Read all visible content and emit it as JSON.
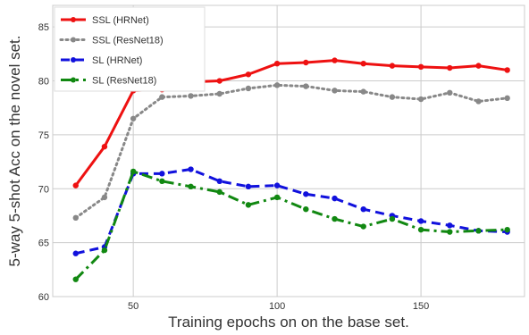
{
  "chart_data": {
    "type": "line",
    "xlabel": "Training epochs on on the base set.",
    "ylabel": "5-way 5-shot Acc on the novel set.",
    "xlim": [
      22,
      186
    ],
    "ylim": [
      60,
      87
    ],
    "xticks": [
      50,
      100,
      150
    ],
    "yticks": [
      60,
      65,
      70,
      75,
      80,
      85
    ],
    "grid": true,
    "legend_position": "top-left",
    "series": [
      {
        "name": "SSL (HRNet)",
        "color": "#ee1111",
        "dash": "solid",
        "x": [
          30,
          40,
          50,
          60,
          70,
          80,
          90,
          100,
          110,
          120,
          130,
          140,
          150,
          160,
          170,
          180
        ],
        "values": [
          70.3,
          73.9,
          79.1,
          79.2,
          79.9,
          80.0,
          80.6,
          81.6,
          81.7,
          81.9,
          81.6,
          81.4,
          81.3,
          81.2,
          81.4,
          81.0
        ]
      },
      {
        "name": "SSL (ResNet18)",
        "color": "#888888",
        "dash": "dotted",
        "x": [
          30,
          40,
          50,
          60,
          70,
          80,
          90,
          100,
          110,
          120,
          130,
          140,
          150,
          160,
          170,
          180
        ],
        "values": [
          67.3,
          69.2,
          76.5,
          78.5,
          78.6,
          78.8,
          79.3,
          79.6,
          79.5,
          79.1,
          79.0,
          78.5,
          78.3,
          78.9,
          78.1,
          78.4
        ]
      },
      {
        "name": "SL (HRNet)",
        "color": "#1111dd",
        "dash": "dashed",
        "x": [
          30,
          40,
          50,
          60,
          70,
          80,
          90,
          100,
          110,
          120,
          130,
          140,
          150,
          160,
          170,
          180
        ],
        "values": [
          64.0,
          64.6,
          71.4,
          71.4,
          71.8,
          70.7,
          70.2,
          70.3,
          69.5,
          69.1,
          68.1,
          67.5,
          67.0,
          66.6,
          66.1,
          66.0
        ]
      },
      {
        "name": "SL (ResNet18)",
        "color": "#118811",
        "dash": "dashdot",
        "x": [
          30,
          40,
          50,
          60,
          70,
          80,
          90,
          100,
          110,
          120,
          130,
          140,
          150,
          160,
          170,
          180
        ],
        "values": [
          61.6,
          64.3,
          71.6,
          70.7,
          70.2,
          69.7,
          68.5,
          69.2,
          68.1,
          67.2,
          66.5,
          67.2,
          66.2,
          66.0,
          66.1,
          66.2
        ]
      }
    ]
  }
}
